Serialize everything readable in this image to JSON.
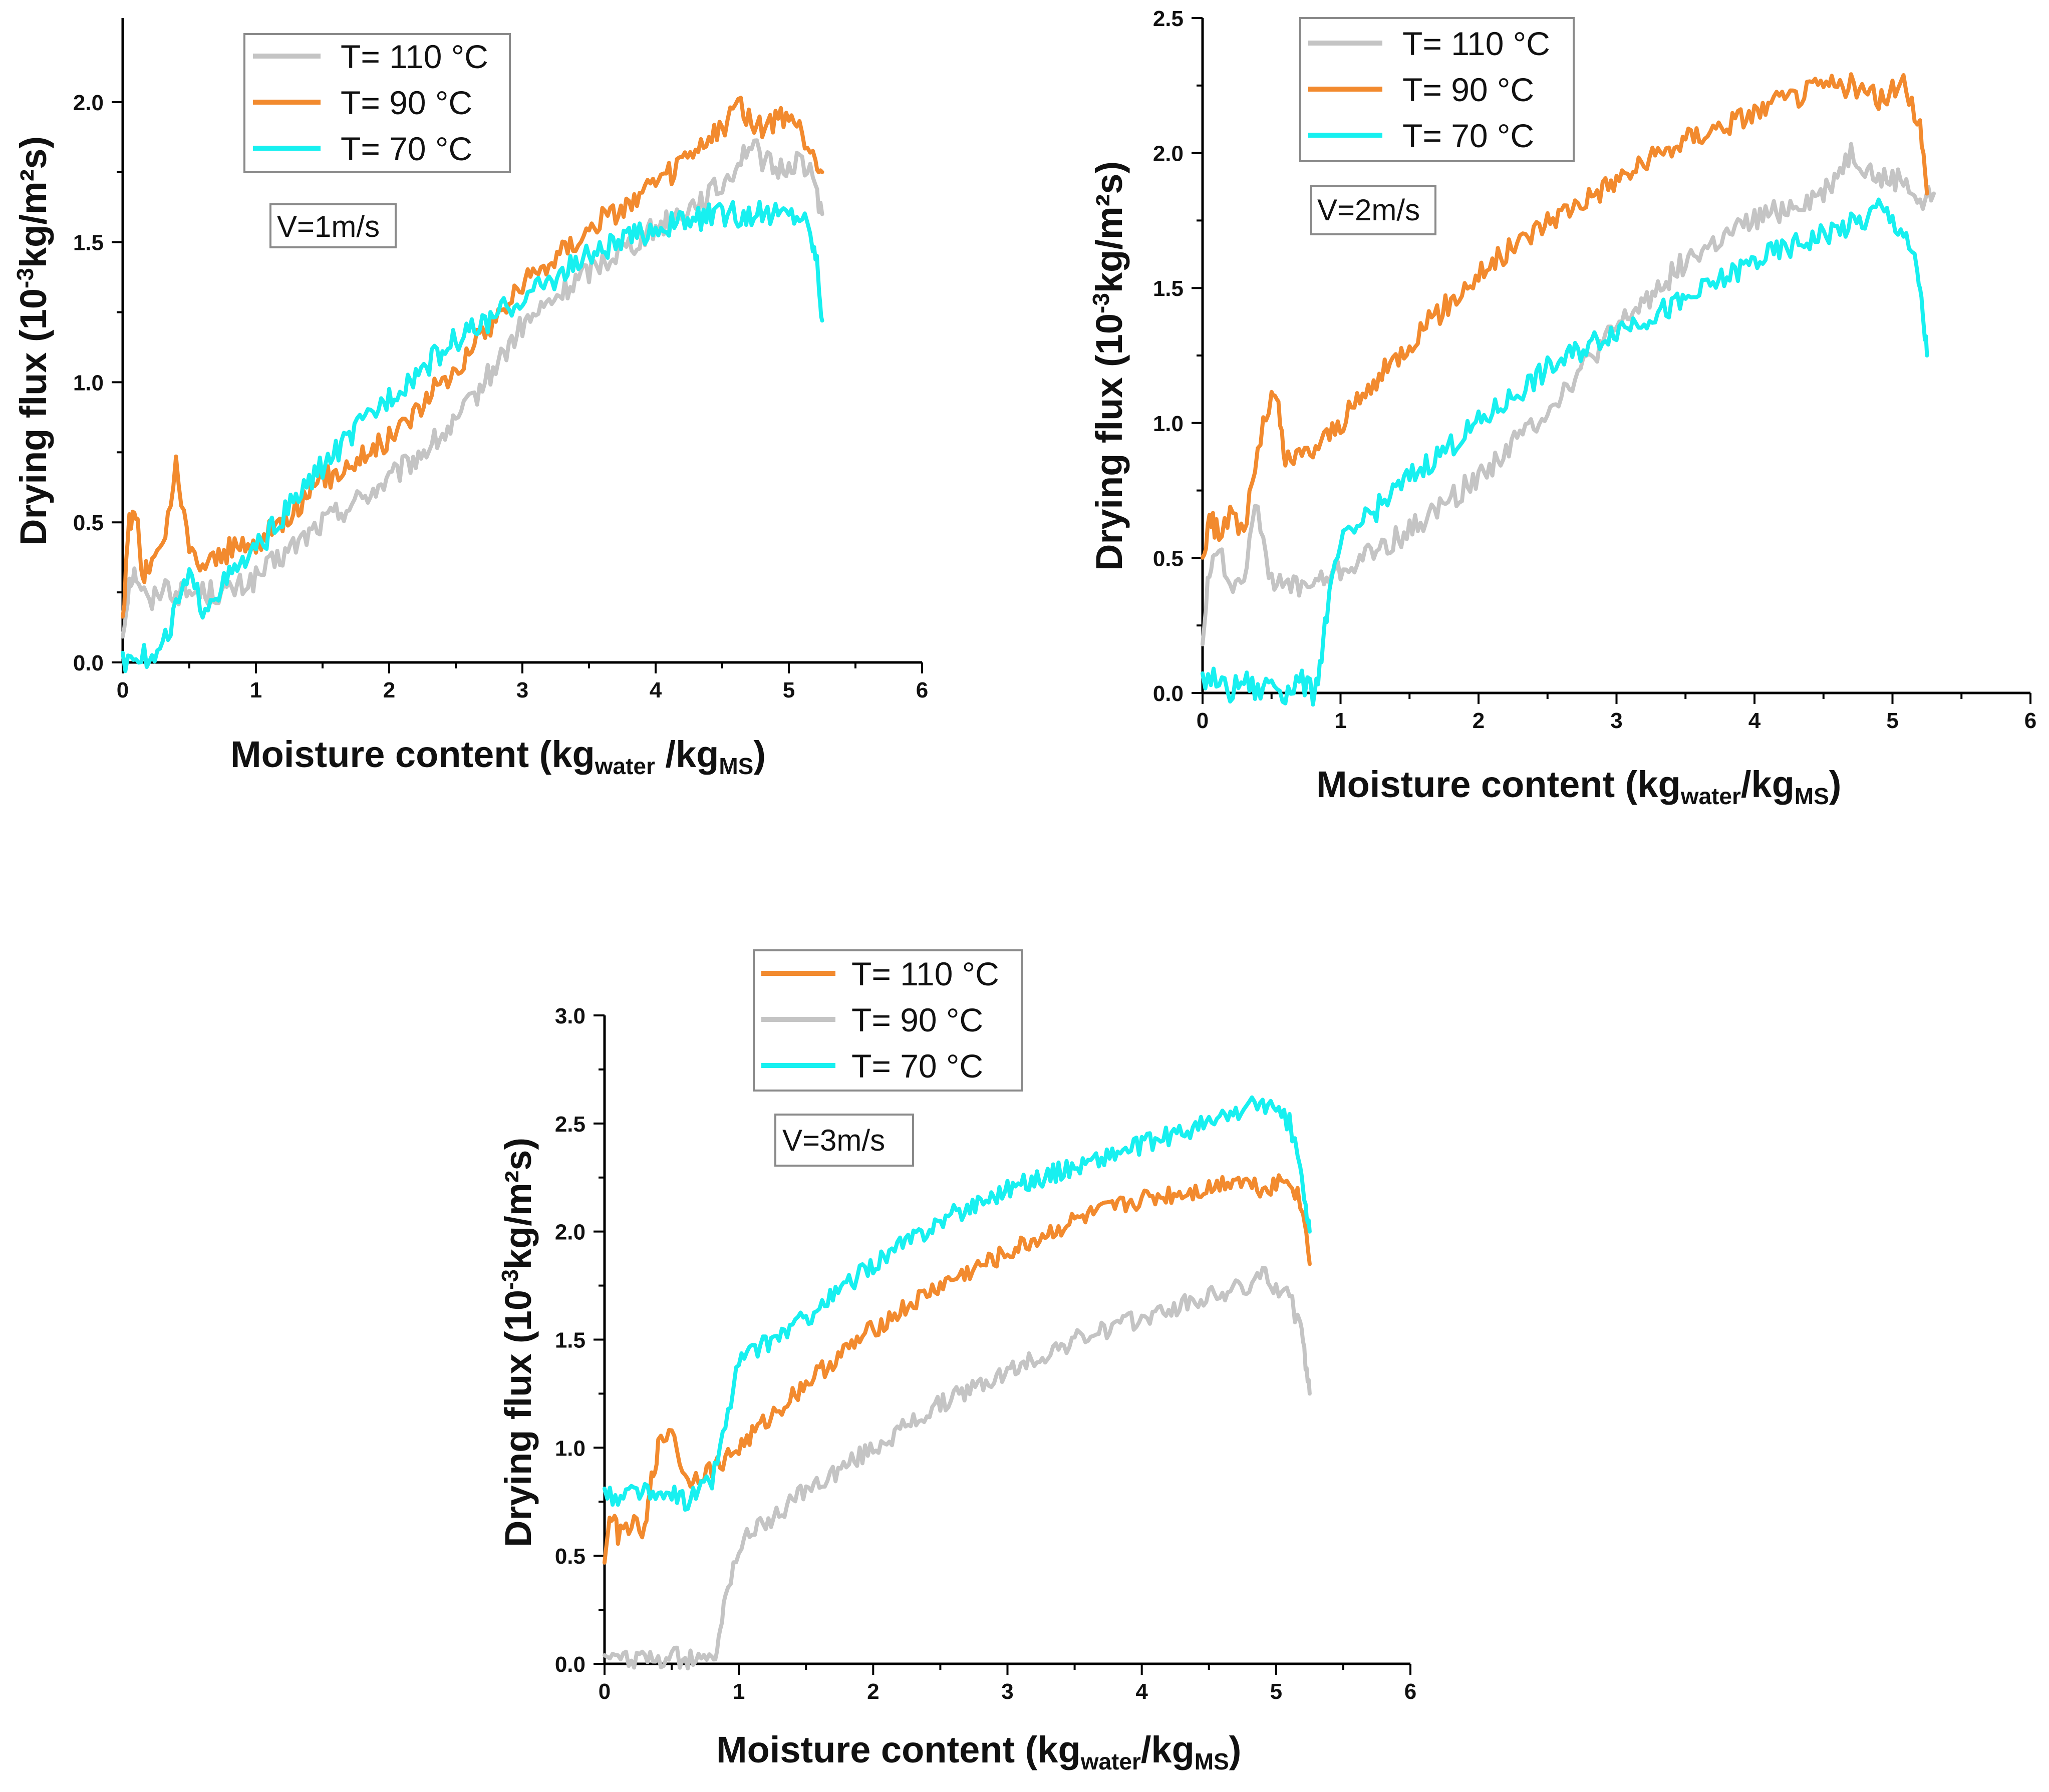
{
  "chart_data": [
    {
      "id": "v1",
      "type": "line",
      "annotation": "V=1m/s",
      "xlabel": {
        "main": "Moisture content (kg",
        "sub1": "water",
        "mid": " /kg",
        "sub2": "MS",
        "end": ")"
      },
      "ylabel": {
        "main": "Drying flux (10",
        "sup": "-3",
        "end": "kg/m²s)"
      },
      "xlim": [
        0,
        6
      ],
      "ylim": [
        0,
        2.3
      ],
      "xticks": [
        0,
        1,
        2,
        3,
        4,
        5,
        6
      ],
      "xtick_labels": [
        "0",
        "1",
        "2",
        "3",
        "4",
        "5",
        "6"
      ],
      "yticks": [
        0,
        0.5,
        1.0,
        1.5,
        2.0
      ],
      "ytick_labels": [
        "0.0",
        "0.5",
        "1.0",
        "1.5",
        "2.0"
      ],
      "legend_position": "top-left",
      "series": [
        {
          "name": "T= 110 °C",
          "color": "#c4c4c4",
          "x": [
            0.0,
            0.05,
            0.1,
            0.2,
            0.3,
            0.4,
            0.6,
            0.8,
            1.0,
            1.5,
            2.0,
            2.5,
            3.0,
            3.5,
            4.0,
            4.5,
            4.7,
            4.9,
            5.1,
            5.2,
            5.25
          ],
          "y": [
            0.1,
            0.3,
            0.32,
            0.2,
            0.28,
            0.25,
            0.25,
            0.25,
            0.3,
            0.5,
            0.65,
            0.85,
            1.2,
            1.4,
            1.55,
            1.7,
            1.85,
            1.75,
            1.8,
            1.7,
            1.6
          ]
        },
        {
          "name": "T= 90 °C",
          "color": "#f28a2e",
          "x": [
            0.0,
            0.05,
            0.1,
            0.15,
            0.2,
            0.3,
            0.4,
            0.5,
            0.6,
            0.8,
            1.0,
            1.5,
            2.0,
            2.5,
            3.0,
            3.5,
            4.0,
            4.5,
            4.6,
            4.8,
            5.0,
            5.2,
            5.25
          ],
          "y": [
            0.15,
            0.5,
            0.55,
            0.3,
            0.35,
            0.4,
            0.7,
            0.4,
            0.35,
            0.4,
            0.42,
            0.65,
            0.8,
            1.05,
            1.35,
            1.55,
            1.7,
            1.9,
            2.0,
            1.9,
            1.95,
            1.8,
            1.75
          ]
        },
        {
          "name": "T= 70 °C",
          "color": "#17f0f0",
          "x": [
            0.0,
            0.1,
            0.2,
            0.3,
            0.4,
            0.5,
            0.6,
            0.8,
            1.0,
            1.5,
            2.0,
            2.5,
            3.0,
            3.5,
            4.0,
            4.5,
            4.7,
            4.9,
            5.1,
            5.18,
            5.22,
            5.25
          ],
          "y": [
            0.0,
            0.05,
            0.0,
            0.05,
            0.2,
            0.3,
            0.2,
            0.3,
            0.4,
            0.7,
            0.95,
            1.15,
            1.3,
            1.45,
            1.55,
            1.6,
            1.6,
            1.6,
            1.6,
            1.5,
            1.4,
            1.22
          ]
        }
      ]
    },
    {
      "id": "v2",
      "type": "line",
      "annotation": "V=2m/s",
      "xlabel": {
        "main": "Moisture content (kg",
        "sub1": "water",
        "mid": "/kg",
        "sub2": "MS",
        "end": ")"
      },
      "ylabel": {
        "main": "Drying flux (10",
        "sup": "-3",
        "end": "kg/m²s)"
      },
      "xlim": [
        0,
        6
      ],
      "ylim": [
        0,
        2.5
      ],
      "xticks": [
        0,
        1,
        2,
        3,
        4,
        5,
        6
      ],
      "xtick_labels": [
        "0",
        "1",
        "2",
        "3",
        "4",
        "5",
        "6"
      ],
      "yticks": [
        0,
        0.5,
        1.0,
        1.5,
        2.0,
        2.5
      ],
      "ytick_labels": [
        "0.0",
        "0.5",
        "1.0",
        "1.5",
        "2.0",
        "2.5"
      ],
      "legend_position": "top-left",
      "series": [
        {
          "name": "T= 110 °C",
          "color": "#c4c4c4",
          "x": [
            0.0,
            0.05,
            0.1,
            0.2,
            0.3,
            0.4,
            0.5,
            0.6,
            0.8,
            1.0,
            1.5,
            2.0,
            2.5,
            3.0,
            3.5,
            4.0,
            4.5,
            4.7,
            4.9,
            5.1,
            5.2,
            5.3
          ],
          "y": [
            0.2,
            0.45,
            0.55,
            0.4,
            0.45,
            0.7,
            0.4,
            0.4,
            0.4,
            0.45,
            0.6,
            0.8,
            1.05,
            1.35,
            1.6,
            1.75,
            1.85,
            2.0,
            1.9,
            1.9,
            1.8,
            1.85
          ]
        },
        {
          "name": "T= 90 °C",
          "color": "#f28a2e",
          "x": [
            0.0,
            0.05,
            0.1,
            0.2,
            0.3,
            0.4,
            0.5,
            0.55,
            0.6,
            0.8,
            1.0,
            1.5,
            2.0,
            2.5,
            3.0,
            3.5,
            4.0,
            4.5,
            4.7,
            4.9,
            5.1,
            5.2,
            5.25
          ],
          "y": [
            0.5,
            0.65,
            0.6,
            0.65,
            0.6,
            0.9,
            1.1,
            1.05,
            0.85,
            0.9,
            1.0,
            1.3,
            1.55,
            1.75,
            1.9,
            2.05,
            2.15,
            2.25,
            2.25,
            2.2,
            2.25,
            2.1,
            1.85
          ]
        },
        {
          "name": "T= 70 °C",
          "color": "#17f0f0",
          "x": [
            0.0,
            0.1,
            0.2,
            0.3,
            0.4,
            0.5,
            0.6,
            0.7,
            0.8,
            0.85,
            0.9,
            1.0,
            1.5,
            2.0,
            2.5,
            3.0,
            3.5,
            4.0,
            4.5,
            4.8,
            4.9,
            5.1,
            5.18,
            5.22,
            5.25
          ],
          "y": [
            0.05,
            0.05,
            0.0,
            0.05,
            0.0,
            0.05,
            0.0,
            0.05,
            0.0,
            0.1,
            0.3,
            0.55,
            0.8,
            1.0,
            1.2,
            1.35,
            1.45,
            1.6,
            1.7,
            1.75,
            1.8,
            1.7,
            1.55,
            1.4,
            1.25
          ]
        }
      ]
    },
    {
      "id": "v3",
      "type": "line",
      "annotation": "V=3m/s",
      "xlabel": {
        "main": "Moisture content (kg",
        "sub1": "water",
        "mid": "/kg",
        "sub2": "MS",
        "end": ")"
      },
      "ylabel": {
        "main": "Drying flux (10",
        "sup": "-3",
        "end": "kg/m²s)"
      },
      "xlim": [
        0,
        6
      ],
      "ylim": [
        0,
        3.0
      ],
      "xticks": [
        0,
        1,
        2,
        3,
        4,
        5,
        6
      ],
      "xtick_labels": [
        "0",
        "1",
        "2",
        "3",
        "4",
        "5",
        "6"
      ],
      "yticks": [
        0,
        0.5,
        1.0,
        1.5,
        2.0,
        2.5,
        3.0
      ],
      "ytick_labels": [
        "0.0",
        "0.5",
        "1.0",
        "1.5",
        "2.0",
        "2.5",
        "3.0"
      ],
      "legend_position": "top-left",
      "series": [
        {
          "name": "T= 110 °C",
          "color": "#f28a2e",
          "x": [
            0.0,
            0.05,
            0.1,
            0.2,
            0.3,
            0.35,
            0.4,
            0.5,
            0.6,
            0.8,
            1.0,
            1.5,
            2.0,
            2.5,
            3.0,
            3.5,
            4.0,
            4.5,
            4.7,
            4.9,
            5.1,
            5.2,
            5.25
          ],
          "y": [
            0.5,
            0.7,
            0.6,
            0.65,
            0.6,
            0.85,
            1.0,
            1.1,
            0.85,
            0.9,
            1.0,
            1.3,
            1.55,
            1.75,
            1.9,
            2.05,
            2.15,
            2.2,
            2.25,
            2.2,
            2.25,
            2.1,
            1.85
          ]
        },
        {
          "name": "T= 90 °C",
          "color": "#c4c4c4",
          "x": [
            0.0,
            0.1,
            0.2,
            0.3,
            0.4,
            0.5,
            0.6,
            0.7,
            0.8,
            0.85,
            0.9,
            1.0,
            1.5,
            2.0,
            2.5,
            3.0,
            3.5,
            4.0,
            4.5,
            4.8,
            4.9,
            5.1,
            5.18,
            5.22,
            5.25
          ],
          "y": [
            0.05,
            0.05,
            0.0,
            0.05,
            0.0,
            0.05,
            0.0,
            0.05,
            0.0,
            0.1,
            0.3,
            0.55,
            0.8,
            1.0,
            1.2,
            1.35,
            1.5,
            1.6,
            1.7,
            1.75,
            1.8,
            1.7,
            1.55,
            1.4,
            1.25
          ]
        },
        {
          "name": "T= 70 °C",
          "color": "#17f0f0",
          "x": [
            0.0,
            0.1,
            0.2,
            0.3,
            0.4,
            0.5,
            0.6,
            0.7,
            0.8,
            0.9,
            1.0,
            1.5,
            2.0,
            2.5,
            3.0,
            3.5,
            4.0,
            4.5,
            4.7,
            4.9,
            5.1,
            5.18,
            5.22,
            5.25
          ],
          "y": [
            0.8,
            0.75,
            0.8,
            0.8,
            0.75,
            0.8,
            0.75,
            0.8,
            0.85,
            1.1,
            1.4,
            1.6,
            1.85,
            2.05,
            2.2,
            2.3,
            2.4,
            2.5,
            2.55,
            2.6,
            2.5,
            2.3,
            2.1,
            2.0
          ]
        }
      ]
    }
  ]
}
